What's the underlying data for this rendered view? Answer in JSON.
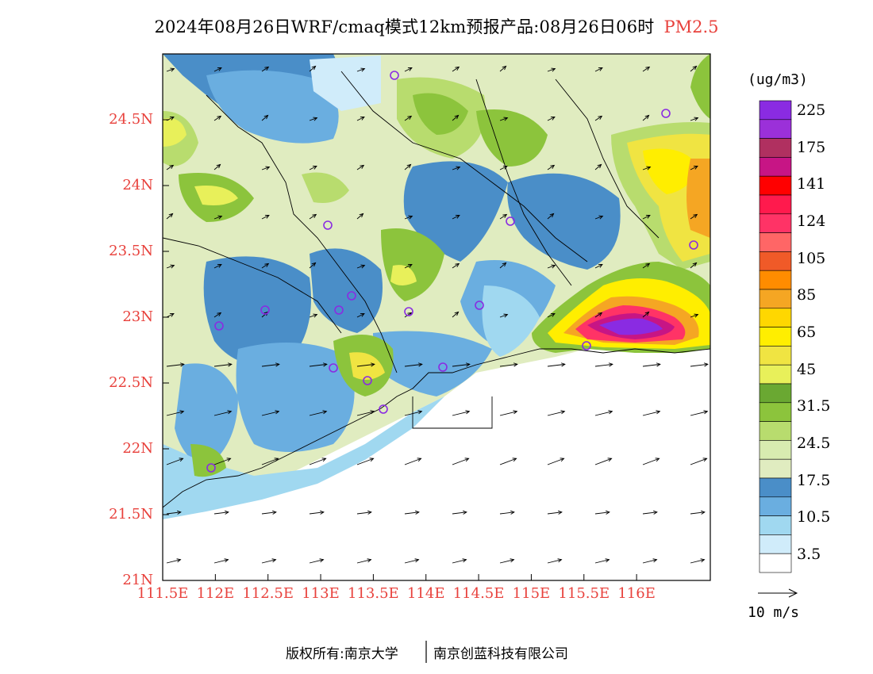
{
  "title": {
    "main": "2024年08月26日WRF/cmaq模式12km预报产品:08月26日06时",
    "variable": "PM2.5",
    "variable_color": "#e8413c"
  },
  "axes": {
    "lat_labels": [
      "24.5N",
      "24N",
      "23.5N",
      "23N",
      "22.5N",
      "22N",
      "21.5N",
      "21N"
    ],
    "lon_labels": [
      "111.5E",
      "112E",
      "112.5E",
      "113E",
      "113.5E",
      "114E",
      "114.5E",
      "115E",
      "115.5E",
      "116E"
    ],
    "label_color": "#e8413c",
    "lat_range": [
      21.0,
      25.0
    ],
    "lon_range": [
      111.5,
      116.7
    ]
  },
  "colorbar": {
    "unit": "(ug/m3)",
    "labels": [
      "225",
      "175",
      "141",
      "124",
      "105",
      "85",
      "65",
      "45",
      "31.5",
      "24.5",
      "17.5",
      "10.5",
      "3.5"
    ],
    "colors_top_to_bottom": [
      "#8a2be2",
      "#9b30d9",
      "#b03060",
      "#c71585",
      "#ff0000",
      "#ff1a4d",
      "#ff3366",
      "#ff6666",
      "#f05a28",
      "#ff8c00",
      "#f5a623",
      "#ffd700",
      "#ffee00",
      "#f0e442",
      "#e8f05a",
      "#6aa832",
      "#8cc43c",
      "#b8dc6e",
      "#d8ecb0",
      "#e0ecc0",
      "#4a8ec8",
      "#6aaee0",
      "#a0d8f0",
      "#d0ecfa",
      "#ffffff"
    ]
  },
  "wind_reference": {
    "label": "10 m/s"
  },
  "markers": {
    "color": "#8a2be2",
    "count": 17
  },
  "footer": {
    "left": "版权所有:南京大学",
    "right": "南京创蓝科技有限公司"
  }
}
